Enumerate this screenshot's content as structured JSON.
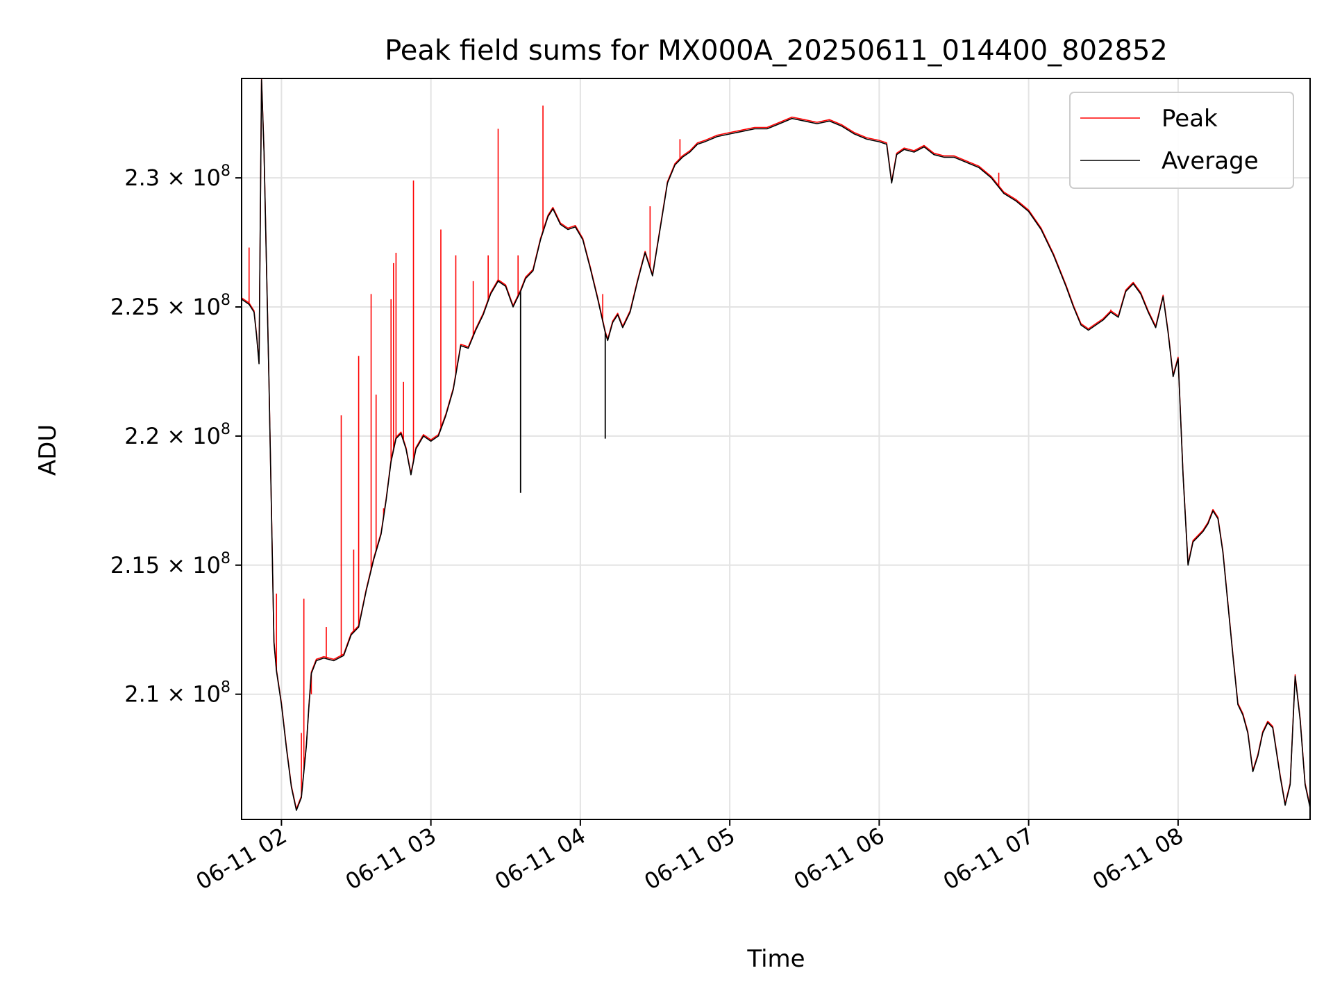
{
  "chart_data": {
    "type": "line",
    "title": "Peak field sums for MX000A_20250611_014400_802852",
    "xlabel": "Time",
    "ylabel": "ADU",
    "x_range": [
      "06-11 01:44",
      "06-11 08:53"
    ],
    "ylim": [
      205150000.0,
      233850000.0
    ],
    "y_ticks": [
      {
        "value": 210000000.0,
        "label": "2.1 × 10⁸"
      },
      {
        "value": 215000000.0,
        "label": "2.15 × 10⁸"
      },
      {
        "value": 220000000.0,
        "label": "2.2 × 10⁸"
      },
      {
        "value": 225000000.0,
        "label": "2.25 × 10⁸"
      },
      {
        "value": 230000000.0,
        "label": "2.3 × 10⁸"
      }
    ],
    "x_ticks": [
      "06-11 02",
      "06-11 03",
      "06-11 04",
      "06-11 05",
      "06-11 06",
      "06-11 07",
      "06-11 08"
    ],
    "grid": true,
    "legend_position": "top-right",
    "series": [
      {
        "name": "Average",
        "color": "#000000",
        "points": [
          [
            "06-11 01:44",
            225.3
          ],
          [
            "06-11 01:47",
            225.1
          ],
          [
            "06-11 01:49",
            224.8
          ],
          [
            "06-11 01:50",
            223.9
          ],
          [
            "06-11 01:51",
            222.8
          ],
          [
            "06-11 01:52",
            233.8
          ],
          [
            "06-11 01:53",
            231.0
          ],
          [
            "06-11 01:55",
            222.0
          ],
          [
            "06-11 01:57",
            212.0
          ],
          [
            "06-11 01:58",
            210.9
          ],
          [
            "06-11 02:00",
            209.6
          ],
          [
            "06-11 02:02",
            207.9
          ],
          [
            "06-11 02:04",
            206.4
          ],
          [
            "06-11 02:06",
            205.5
          ],
          [
            "06-11 02:08",
            206.0
          ],
          [
            "06-11 02:10",
            208.0
          ],
          [
            "06-11 02:11",
            209.5
          ],
          [
            "06-11 02:12",
            210.8
          ],
          [
            "06-11 02:14",
            211.3
          ],
          [
            "06-11 02:17",
            211.4
          ],
          [
            "06-11 02:21",
            211.3
          ],
          [
            "06-11 02:25",
            211.5
          ],
          [
            "06-11 02:28",
            212.3
          ],
          [
            "06-11 02:31",
            212.6
          ],
          [
            "06-11 02:34",
            214.0
          ],
          [
            "06-11 02:37",
            215.2
          ],
          [
            "06-11 02:40",
            216.2
          ],
          [
            "06-11 02:42",
            217.5
          ],
          [
            "06-11 02:44",
            219.0
          ],
          [
            "06-11 02:46",
            219.9
          ],
          [
            "06-11 02:48",
            220.1
          ],
          [
            "06-11 02:50",
            219.5
          ],
          [
            "06-11 02:52",
            218.5
          ],
          [
            "06-11 02:54",
            219.5
          ],
          [
            "06-11 02:57",
            220.0
          ],
          [
            "06-11 03:00",
            219.8
          ],
          [
            "06-11 03:03",
            220.0
          ],
          [
            "06-11 03:06",
            220.8
          ],
          [
            "06-11 03:09",
            221.8
          ],
          [
            "06-11 03:12",
            223.5
          ],
          [
            "06-11 03:15",
            223.4
          ],
          [
            "06-11 03:18",
            224.1
          ],
          [
            "06-11 03:21",
            224.7
          ],
          [
            "06-11 03:24",
            225.5
          ],
          [
            "06-11 03:27",
            226.0
          ],
          [
            "06-11 03:30",
            225.8
          ],
          [
            "06-11 03:33",
            225.0
          ],
          [
            "06-11 03:36",
            225.6
          ],
          [
            "06-11 03:38",
            226.1
          ],
          [
            "06-11 03:41",
            226.4
          ],
          [
            "06-11 03:44",
            227.6
          ],
          [
            "06-11 03:47",
            228.5
          ],
          [
            "06-11 03:49",
            228.8
          ],
          [
            "06-11 03:52",
            228.2
          ],
          [
            "06-11 03:55",
            228.0
          ],
          [
            "06-11 03:58",
            228.1
          ],
          [
            "06-11 04:01",
            227.6
          ],
          [
            "06-11 04:04",
            226.5
          ],
          [
            "06-11 04:07",
            225.3
          ],
          [
            "06-11 04:10",
            224.0
          ],
          [
            "06-11 04:11",
            223.7
          ],
          [
            "06-11 04:13",
            224.4
          ],
          [
            "06-11 04:15",
            224.7
          ],
          [
            "06-11 04:17",
            224.2
          ],
          [
            "06-11 04:20",
            224.8
          ],
          [
            "06-11 04:23",
            226.0
          ],
          [
            "06-11 04:26",
            227.1
          ],
          [
            "06-11 04:29",
            226.2
          ],
          [
            "06-11 04:32",
            228.0
          ],
          [
            "06-11 04:35",
            229.8
          ],
          [
            "06-11 04:38",
            230.5
          ],
          [
            "06-11 04:41",
            230.8
          ],
          [
            "06-11 04:44",
            231.0
          ],
          [
            "06-11 04:47",
            231.3
          ],
          [
            "06-11 04:50",
            231.4
          ],
          [
            "06-11 04:55",
            231.6
          ],
          [
            "06-11 05:00",
            231.7
          ],
          [
            "06-11 05:05",
            231.8
          ],
          [
            "06-11 05:10",
            231.9
          ],
          [
            "06-11 05:15",
            231.9
          ],
          [
            "06-11 05:20",
            232.1
          ],
          [
            "06-11 05:25",
            232.3
          ],
          [
            "06-11 05:30",
            232.2
          ],
          [
            "06-11 05:35",
            232.1
          ],
          [
            "06-11 05:40",
            232.2
          ],
          [
            "06-11 05:45",
            232.0
          ],
          [
            "06-11 05:50",
            231.7
          ],
          [
            "06-11 05:55",
            231.5
          ],
          [
            "06-11 06:00",
            231.4
          ],
          [
            "06-11 06:03",
            231.3
          ],
          [
            "06-11 06:05",
            229.8
          ],
          [
            "06-11 06:07",
            230.9
          ],
          [
            "06-11 06:10",
            231.1
          ],
          [
            "06-11 06:14",
            231.0
          ],
          [
            "06-11 06:18",
            231.2
          ],
          [
            "06-11 06:22",
            230.9
          ],
          [
            "06-11 06:26",
            230.8
          ],
          [
            "06-11 06:30",
            230.8
          ],
          [
            "06-11 06:35",
            230.6
          ],
          [
            "06-11 06:40",
            230.4
          ],
          [
            "06-11 06:45",
            230.0
          ],
          [
            "06-11 06:50",
            229.4
          ],
          [
            "06-11 06:55",
            229.1
          ],
          [
            "06-11 07:00",
            228.7
          ],
          [
            "06-11 07:05",
            228.0
          ],
          [
            "06-11 07:10",
            227.0
          ],
          [
            "06-11 07:15",
            225.8
          ],
          [
            "06-11 07:18",
            225.0
          ],
          [
            "06-11 07:21",
            224.3
          ],
          [
            "06-11 07:24",
            224.1
          ],
          [
            "06-11 07:27",
            224.3
          ],
          [
            "06-11 07:30",
            224.5
          ],
          [
            "06-11 07:33",
            224.8
          ],
          [
            "06-11 07:36",
            224.6
          ],
          [
            "06-11 07:39",
            225.6
          ],
          [
            "06-11 07:42",
            225.9
          ],
          [
            "06-11 07:45",
            225.5
          ],
          [
            "06-11 07:48",
            224.8
          ],
          [
            "06-11 07:51",
            224.2
          ],
          [
            "06-11 07:54",
            225.4
          ],
          [
            "06-11 07:56",
            224.0
          ],
          [
            "06-11 07:58",
            222.3
          ],
          [
            "06-11 08:00",
            223.0
          ],
          [
            "06-11 08:02",
            218.5
          ],
          [
            "06-11 08:04",
            215.0
          ],
          [
            "06-11 08:06",
            215.9
          ],
          [
            "06-11 08:08",
            216.1
          ],
          [
            "06-11 08:10",
            216.3
          ],
          [
            "06-11 08:12",
            216.6
          ],
          [
            "06-11 08:14",
            217.1
          ],
          [
            "06-11 08:16",
            216.8
          ],
          [
            "06-11 08:18",
            215.5
          ],
          [
            "06-11 08:20",
            213.5
          ],
          [
            "06-11 08:22",
            211.5
          ],
          [
            "06-11 08:24",
            209.6
          ],
          [
            "06-11 08:26",
            209.2
          ],
          [
            "06-11 08:28",
            208.5
          ],
          [
            "06-11 08:30",
            207.0
          ],
          [
            "06-11 08:32",
            207.6
          ],
          [
            "06-11 08:34",
            208.5
          ],
          [
            "06-11 08:36",
            208.9
          ],
          [
            "06-11 08:38",
            208.7
          ],
          [
            "06-11 08:41",
            206.8
          ],
          [
            "06-11 08:43",
            205.7
          ],
          [
            "06-11 08:45",
            206.5
          ],
          [
            "06-11 08:47",
            210.7
          ],
          [
            "06-11 08:49",
            209.0
          ],
          [
            "06-11 08:51",
            206.5
          ],
          [
            "06-11 08:53",
            205.6
          ]
        ],
        "dips": [
          [
            "06-11 03:36",
            217.8
          ],
          [
            "06-11 04:10",
            219.9
          ]
        ]
      },
      {
        "name": "Peak",
        "color": "#ff0000",
        "spikes": [
          [
            "06-11 01:47",
            227.3
          ],
          [
            "06-11 01:58",
            213.9
          ],
          [
            "06-11 02:08",
            208.5
          ],
          [
            "06-11 02:09",
            213.7
          ],
          [
            "06-11 02:12",
            210.0
          ],
          [
            "06-11 02:18",
            212.6
          ],
          [
            "06-11 02:24",
            220.8
          ],
          [
            "06-11 02:29",
            215.6
          ],
          [
            "06-11 02:31",
            223.1
          ],
          [
            "06-11 02:36",
            225.5
          ],
          [
            "06-11 02:38",
            221.6
          ],
          [
            "06-11 02:41",
            217.2
          ],
          [
            "06-11 02:44",
            225.3
          ],
          [
            "06-11 02:45",
            226.7
          ],
          [
            "06-11 02:46",
            227.1
          ],
          [
            "06-11 02:49",
            222.1
          ],
          [
            "06-11 02:53",
            229.9
          ],
          [
            "06-11 03:04",
            228.0
          ],
          [
            "06-11 03:10",
            227.0
          ],
          [
            "06-11 03:17",
            226.0
          ],
          [
            "06-11 03:23",
            227.0
          ],
          [
            "06-11 03:27",
            231.9
          ],
          [
            "06-11 03:35",
            227.0
          ],
          [
            "06-11 03:45",
            232.8
          ],
          [
            "06-11 04:09",
            225.5
          ],
          [
            "06-11 04:28",
            228.9
          ],
          [
            "06-11 04:40",
            231.5
          ],
          [
            "06-11 06:48",
            230.2
          ],
          [
            "06-11 07:33",
            224.9
          ]
        ]
      }
    ]
  }
}
